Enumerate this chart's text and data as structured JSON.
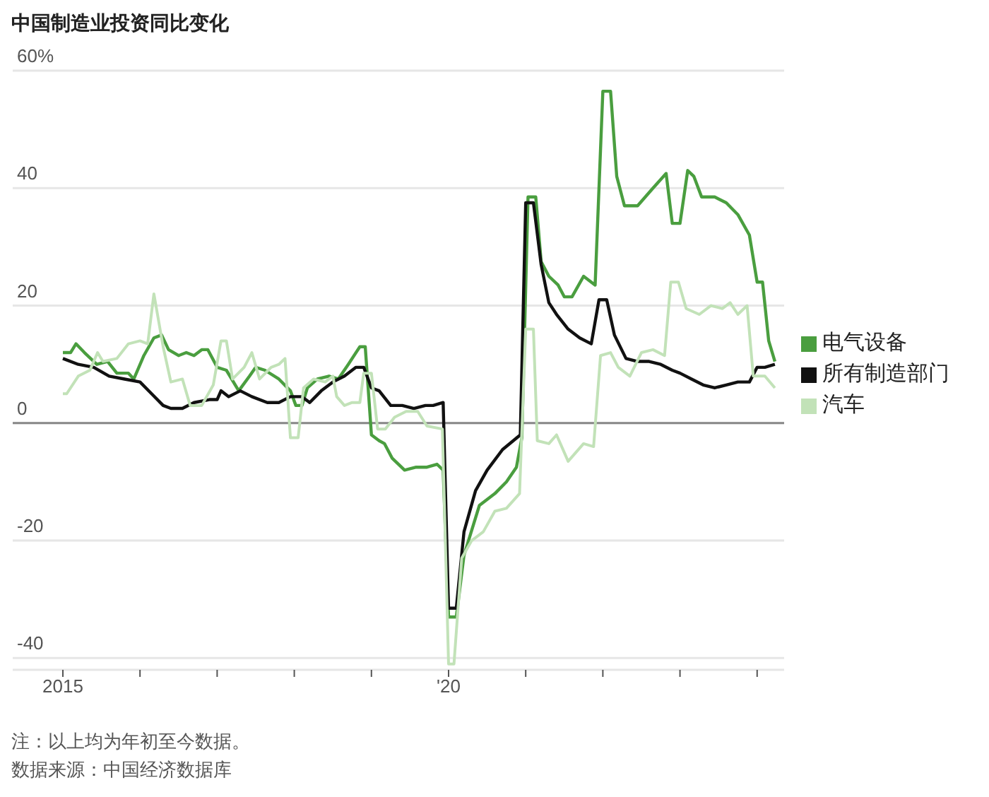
{
  "chart_data": {
    "type": "line",
    "title": "中国制造业投资同比变化",
    "annotations": [
      "注：以上均为年初至今数据。",
      "数据来源：中国经济数据库"
    ],
    "series": [
      {
        "name": "电气设备",
        "color": "#4a9e3f",
        "x": [
          2015.0,
          2015.1,
          2015.17,
          2015.28,
          2015.44,
          2015.58,
          2015.7,
          2015.85,
          2015.92,
          2016.05,
          2016.18,
          2016.28,
          2016.37,
          2016.5,
          2016.6,
          2016.7,
          2016.8,
          2016.88,
          2017.0,
          2017.12,
          2017.28,
          2017.42,
          2017.5,
          2017.62,
          2017.8,
          2017.95,
          2018.02,
          2018.1,
          2018.17,
          2018.3,
          2018.45,
          2018.57,
          2018.7,
          2018.85,
          2018.92,
          2019.0,
          2019.1,
          2019.17,
          2019.27,
          2019.43,
          2019.58,
          2019.72,
          2019.85,
          2019.93,
          2020.0,
          2020.1,
          2020.2,
          2020.4,
          2020.6,
          2020.75,
          2020.88,
          2020.95,
          2021.03,
          2021.13,
          2021.2,
          2021.3,
          2021.42,
          2021.5,
          2021.6,
          2021.75,
          2021.9,
          2022.0,
          2022.1,
          2022.18,
          2022.28,
          2022.45,
          2022.55,
          2022.65,
          2022.82,
          2022.9,
          2023.0,
          2023.1,
          2023.18,
          2023.28,
          2023.45,
          2023.6,
          2023.75,
          2023.9,
          2024.0,
          2024.07,
          2024.15,
          2024.23
        ],
        "values": [
          12,
          12,
          13.5,
          12,
          10,
          10.5,
          8.5,
          8.5,
          7.5,
          11.5,
          14.5,
          15,
          12.5,
          11.5,
          12,
          11.5,
          12.5,
          12.5,
          9.5,
          9,
          5.5,
          8,
          9.5,
          9,
          7.5,
          5.5,
          3,
          3,
          6,
          7.5,
          8,
          7.5,
          10,
          13,
          13,
          -2,
          -3,
          -3.5,
          -6,
          -8,
          -7.5,
          -7.5,
          -7,
          -8,
          -33,
          -33,
          -22.5,
          -14,
          -12,
          -10,
          -7.5,
          -2.5,
          38.5,
          38.5,
          27.5,
          25,
          23.5,
          21.5,
          21.5,
          25,
          23.5,
          56.5,
          56.5,
          42,
          37,
          37,
          38.5,
          40,
          42.5,
          34,
          34,
          43,
          42,
          38.5,
          38.5,
          37.5,
          35.5,
          32,
          24,
          24,
          14,
          10.5
        ]
      },
      {
        "name": "所有制造部门",
        "color": "#111111",
        "x": [
          2015.0,
          2015.2,
          2015.4,
          2015.6,
          2015.8,
          2016.0,
          2016.15,
          2016.3,
          2016.4,
          2016.55,
          2016.7,
          2016.9,
          2017.0,
          2017.05,
          2017.15,
          2017.3,
          2017.45,
          2017.65,
          2017.8,
          2017.95,
          2018.1,
          2018.2,
          2018.35,
          2018.5,
          2018.65,
          2018.8,
          2018.9,
          2019.0,
          2019.1,
          2019.25,
          2019.4,
          2019.55,
          2019.7,
          2019.8,
          2019.93,
          2020.0,
          2020.1,
          2020.2,
          2020.35,
          2020.5,
          2020.7,
          2020.93,
          2021.0,
          2021.1,
          2021.2,
          2021.3,
          2021.4,
          2021.55,
          2021.7,
          2021.85,
          2021.95,
          2022.05,
          2022.15,
          2022.3,
          2022.45,
          2022.6,
          2022.75,
          2022.9,
          2023.0,
          2023.15,
          2023.3,
          2023.45,
          2023.6,
          2023.75,
          2023.9,
          2024.0,
          2024.1,
          2024.23
        ],
        "values": [
          11,
          10,
          9.5,
          8,
          7.5,
          7,
          5,
          3,
          2.5,
          2.5,
          3.5,
          4,
          4,
          5.5,
          4.5,
          5.5,
          4.5,
          3.5,
          3.5,
          4.5,
          4.5,
          3.5,
          5.5,
          7,
          8,
          9.5,
          9.5,
          6,
          5.5,
          3,
          3,
          2.5,
          3,
          3,
          3.5,
          -31.5,
          -31.5,
          -18.5,
          -11.5,
          -8,
          -4.5,
          -2,
          37.5,
          37.5,
          27,
          20.5,
          18.5,
          16,
          14.5,
          13.5,
          21,
          21,
          15,
          11,
          10.5,
          10.5,
          10,
          9,
          8.5,
          7.5,
          6.5,
          6,
          6.5,
          7,
          7,
          9.5,
          9.5,
          10
        ]
      },
      {
        "name": "汽车",
        "color": "#c2e2b8",
        "x": [
          2015.0,
          2015.05,
          2015.2,
          2015.35,
          2015.45,
          2015.52,
          2015.7,
          2015.85,
          2016.0,
          2016.1,
          2016.18,
          2016.3,
          2016.4,
          2016.55,
          2016.65,
          2016.8,
          2016.95,
          2017.05,
          2017.12,
          2017.2,
          2017.35,
          2017.45,
          2017.55,
          2017.7,
          2017.8,
          2017.88,
          2017.95,
          2018.05,
          2018.12,
          2018.25,
          2018.4,
          2018.5,
          2018.55,
          2018.65,
          2018.75,
          2018.85,
          2018.9,
          2019.0,
          2019.08,
          2019.18,
          2019.3,
          2019.45,
          2019.6,
          2019.72,
          2019.92,
          2020.0,
          2020.07,
          2020.17,
          2020.3,
          2020.45,
          2020.6,
          2020.75,
          2020.92,
          2021.0,
          2021.1,
          2021.15,
          2021.3,
          2021.4,
          2021.55,
          2021.75,
          2021.88,
          2021.97,
          2022.1,
          2022.2,
          2022.35,
          2022.5,
          2022.65,
          2022.8,
          2022.88,
          2022.98,
          2023.08,
          2023.25,
          2023.4,
          2023.55,
          2023.65,
          2023.75,
          2023.87,
          2023.95,
          2024.1,
          2024.23
        ],
        "values": [
          5,
          5,
          8,
          9,
          12,
          10.5,
          11,
          13.5,
          14,
          13.5,
          22,
          13,
          7,
          7.5,
          3,
          3,
          6.5,
          14,
          14,
          7.5,
          9.5,
          12,
          7.5,
          9.5,
          10,
          11,
          -2.5,
          -2.5,
          6,
          7.5,
          7,
          8,
          4.5,
          3,
          3.5,
          3.5,
          8.5,
          8.5,
          -1,
          -1,
          1,
          2,
          2,
          -0.5,
          -1,
          -41,
          -41,
          -23,
          -20,
          -18.5,
          -15,
          -14.5,
          -12,
          16,
          16,
          -3,
          -3.5,
          -2,
          -6.5,
          -3.5,
          -4,
          11.5,
          12,
          9.5,
          8,
          12,
          12.5,
          11.5,
          24,
          24,
          19.5,
          18.5,
          20,
          19.5,
          20.5,
          18.5,
          20,
          8,
          8,
          6
        ]
      }
    ],
    "xlim": [
      2014.35,
      2024.35
    ],
    "xticks": [
      {
        "value": 2015,
        "label": "2015"
      },
      {
        "value": 2016,
        "label": null
      },
      {
        "value": 2017,
        "label": null
      },
      {
        "value": 2018,
        "label": null
      },
      {
        "value": 2019,
        "label": null
      },
      {
        "value": 2020,
        "label": "'20"
      },
      {
        "value": 2021,
        "label": null
      },
      {
        "value": 2022,
        "label": null
      },
      {
        "value": 2023,
        "label": null
      },
      {
        "value": 2024,
        "label": null
      }
    ],
    "ylim": [
      -42,
      60
    ],
    "yticks": [
      {
        "value": 60,
        "label": "60%"
      },
      40,
      20,
      0,
      -20,
      -40
    ],
    "grid": "y",
    "legend": "right",
    "ref_lines": [
      {
        "axis": "y",
        "value": 0,
        "color": "#888888"
      }
    ]
  }
}
